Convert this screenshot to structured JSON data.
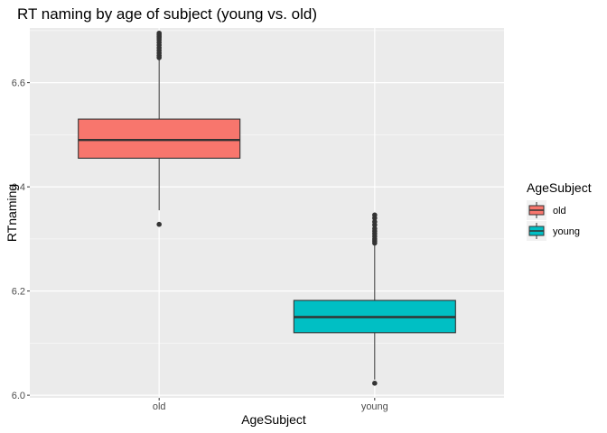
{
  "chart_data": {
    "type": "boxplot",
    "title": "RT naming by age of subject (young vs. old)",
    "xlabel": "AgeSubject",
    "ylabel": "RTnaming",
    "categories": [
      "old",
      "young"
    ],
    "ylim": [
      5.995,
      6.705
    ],
    "yticks": [
      6.0,
      6.2,
      6.4,
      6.6
    ],
    "ytick_labels": [
      "6.0",
      "6.2",
      "6.4",
      "6.6"
    ],
    "grid": true,
    "legend": {
      "title": "AgeSubject",
      "position": "right"
    },
    "boxes": [
      {
        "name": "old",
        "color": "#F8766D",
        "whisker_low": 6.355,
        "q1": 6.455,
        "median": 6.49,
        "q3": 6.53,
        "whisker_high": 6.645,
        "outliers": [
          6.328,
          6.648,
          6.652,
          6.657,
          6.662,
          6.667,
          6.672,
          6.677,
          6.682,
          6.686,
          6.689,
          6.692,
          6.695
        ]
      },
      {
        "name": "young",
        "color": "#00BFC4",
        "whisker_low": 6.03,
        "q1": 6.12,
        "median": 6.15,
        "q3": 6.182,
        "whisker_high": 6.29,
        "outliers": [
          6.023,
          6.292,
          6.296,
          6.3,
          6.305,
          6.31,
          6.315,
          6.32,
          6.327,
          6.333,
          6.34,
          6.346
        ]
      }
    ]
  }
}
